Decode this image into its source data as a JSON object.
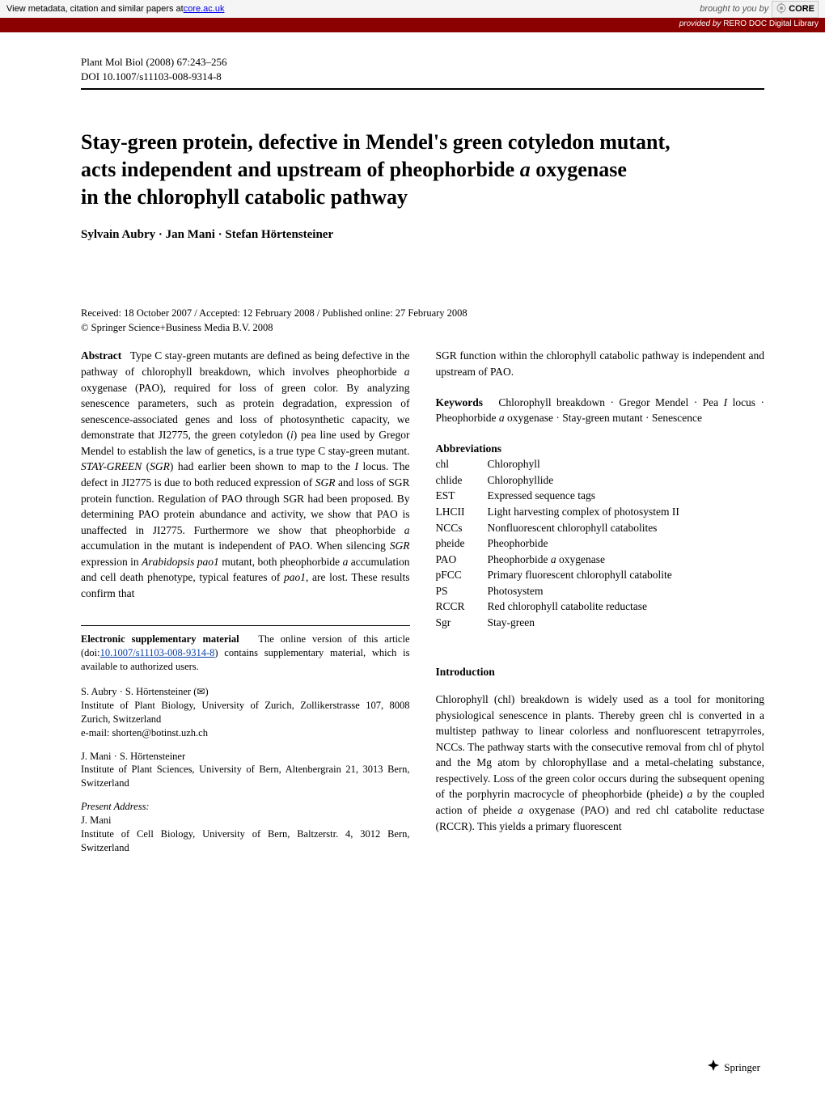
{
  "banner": {
    "metadata_text": "View metadata, citation and similar papers at ",
    "metadata_link": "core.ac.uk",
    "brought_by": "brought to you by",
    "core_label": "CORE",
    "provided_by_label": "provided by ",
    "provider": "RERO DOC Digital Library"
  },
  "header": {
    "journal": "Plant Mol Biol (2008) 67:243–256",
    "doi": "DOI 10.1007/s11103-008-9314-8"
  },
  "title": {
    "line1": "Stay-green protein, defective in Mendel's green cotyledon mutant,",
    "line2_pre": "acts independent and upstream of pheophorbide ",
    "line2_ital": "a",
    "line2_post": " oxygenase",
    "line3": "in the chlorophyll catabolic pathway"
  },
  "authors": "Sylvain Aubry · Jan Mani · Stefan Hörtensteiner",
  "dates": {
    "line1": "Received: 18 October 2007 / Accepted: 12 February 2008 / Published online: 27 February 2008",
    "line2": "© Springer Science+Business Media B.V. 2008"
  },
  "abstract": {
    "label": "Abstract",
    "text_pre": "Type C stay-green mutants are defined as being defective in the pathway of chlorophyll breakdown, which involves pheophorbide ",
    "text_a1": "a",
    "text_mid1": " oxygenase (PAO), required for loss of green color. By analyzing senescence parameters, such as protein degradation, expression of senescence-associated genes and loss of photosynthetic capacity, we demonstrate that JI2775, the green cotyledon (",
    "text_i": "i",
    "text_mid2": ") pea line used by Gregor Mendel to establish the law of genetics, is a true type C stay-green mutant. ",
    "text_sgr": "STAY-GREEN",
    "text_mid3": " (",
    "text_sgr2": "SGR",
    "text_mid4": ") had earlier been shown to map to the ",
    "text_I": "I",
    "text_mid5": " locus. The defect in JI2775 is due to both reduced expression of ",
    "text_sgr3": "SGR",
    "text_mid6": " and loss of SGR protein function. Regulation of PAO through SGR had been proposed. By determining PAO protein abundance and activity, we show that PAO is unaffected in JI2775. Furthermore we show that pheophorbide ",
    "text_a2": "a",
    "text_mid7": " accumulation in the mutant is independent of PAO. When silencing ",
    "text_sgr4": "SGR",
    "text_mid8": " expression in ",
    "text_arab": "Arabidopsis pao1",
    "text_mid9": " mutant, both pheophorbide ",
    "text_a3": "a",
    "text_mid10": " accumulation and cell death phenotype, typical features of ",
    "text_pao1": "pao1",
    "text_mid11": ", are lost. These results confirm that"
  },
  "abstract_cont": "SGR function within the chlorophyll catabolic pathway is independent and upstream of PAO.",
  "keywords": {
    "label": "Keywords",
    "text": "Chlorophyll breakdown · Gregor Mendel · Pea ",
    "pea_I": "I",
    "text2": " locus · Pheophorbide ",
    "pheo_a": "a",
    "text3": " oxygenase · Stay-green mutant · Senescence"
  },
  "abbreviations": {
    "label": "Abbreviations",
    "items": [
      {
        "key": "chl",
        "val": "Chlorophyll"
      },
      {
        "key": "chlide",
        "val": "Chlorophyllide"
      },
      {
        "key": "EST",
        "val": "Expressed sequence tags"
      },
      {
        "key": "LHCII",
        "val": "Light harvesting complex of photosystem II"
      },
      {
        "key": "NCCs",
        "val": "Nonfluorescent chlorophyll catabolites"
      },
      {
        "key": "pheide",
        "val": "Pheophorbide"
      },
      {
        "key": "PAO",
        "val_pre": "Pheophorbide ",
        "val_ital": "a",
        "val_post": " oxygenase"
      },
      {
        "key": "pFCC",
        "val": "Primary fluorescent chlorophyll catabolite"
      },
      {
        "key": "PS",
        "val": "Photosystem"
      },
      {
        "key": "RCCR",
        "val": "Red chlorophyll catabolite reductase"
      },
      {
        "key": "Sgr",
        "val": "Stay-green"
      }
    ]
  },
  "supplementary": {
    "label": "Electronic supplementary material",
    "text1": "The online version of this article (doi:",
    "doi": "10.1007/s11103-008-9314-8",
    "text2": ") contains supplementary material, which is available to authorized users."
  },
  "affiliations": {
    "a1_names": "S. Aubry · S. Hörtensteiner (",
    "envelope": "✉",
    "a1_close": ")",
    "a1_inst": "Institute of Plant Biology, University of Zurich, Zollikerstrasse 107, 8008 Zurich, Switzerland",
    "a1_email": "e-mail: shorten@botinst.uzh.ch",
    "a2_names": "J. Mani · S. Hörtensteiner",
    "a2_inst": "Institute of Plant Sciences, University of Bern, Altenbergrain 21, 3013 Bern, Switzerland",
    "present_label": "Present Address:",
    "a3_names": "J. Mani",
    "a3_inst": "Institute of Cell Biology, University of Bern, Baltzerstr. 4, 3012 Bern, Switzerland"
  },
  "introduction": {
    "label": "Introduction",
    "text": "Chlorophyll (chl) breakdown is widely used as a tool for monitoring physiological senescence in plants. Thereby green chl is converted in a multistep pathway to linear colorless and nonfluorescent tetrapyrroles, NCCs. The pathway starts with the consecutive removal from chl of phytol and the Mg atom by chlorophyllase and a metal-chelating substance, respectively. Loss of the green color occurs during the subsequent opening of the porphyrin macrocycle of pheophorbide (pheide) ",
    "text_a": "a",
    "text2": " by the coupled action of pheide ",
    "text_a2": "a",
    "text3": " oxygenase (PAO) and red chl catabolite reductase (RCCR). This yields a primary fluorescent"
  },
  "springer": {
    "icon": "⚔",
    "label": "Springer"
  }
}
